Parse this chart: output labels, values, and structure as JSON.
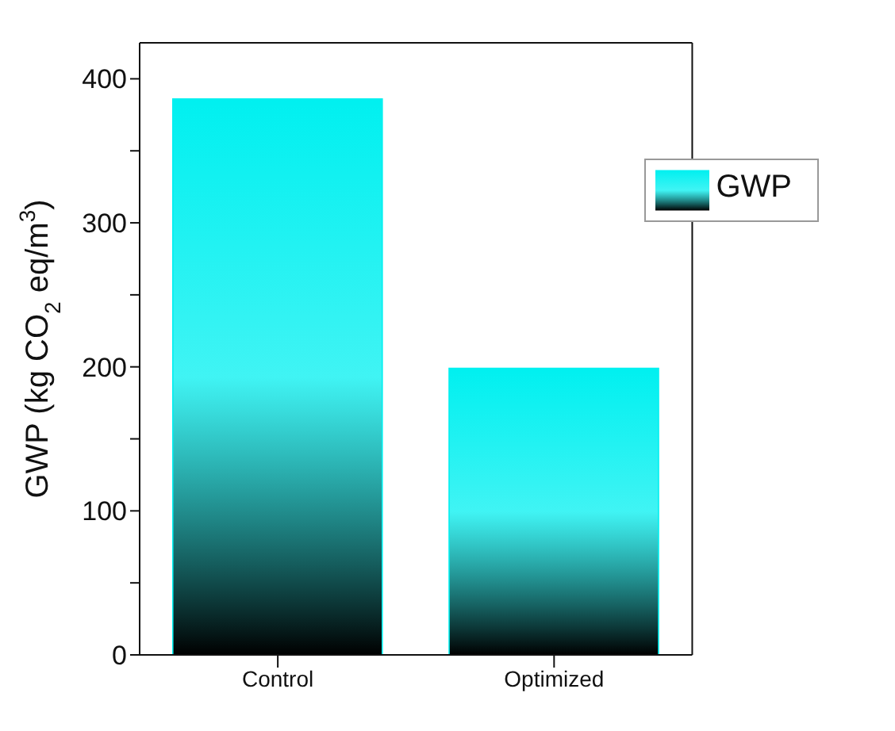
{
  "chart_data": {
    "type": "bar",
    "ylabel": "GWP (kg CO$_{2}$ eq/m$^{3}$)",
    "categories": [
      "Control",
      "Optimized"
    ],
    "series": [
      {
        "name": "GWP",
        "color": "#00f0f0",
        "values": [
          386,
          199
        ]
      }
    ],
    "ylim": [
      0,
      425
    ],
    "yticks": [
      0,
      {
        "value": 50,
        "label": null
      },
      100,
      {
        "value": 150,
        "label": null
      },
      200,
      {
        "value": 250,
        "label": null
      },
      300,
      {
        "value": 350,
        "label": null
      },
      400
    ],
    "grid": false,
    "legend": "top right"
  }
}
